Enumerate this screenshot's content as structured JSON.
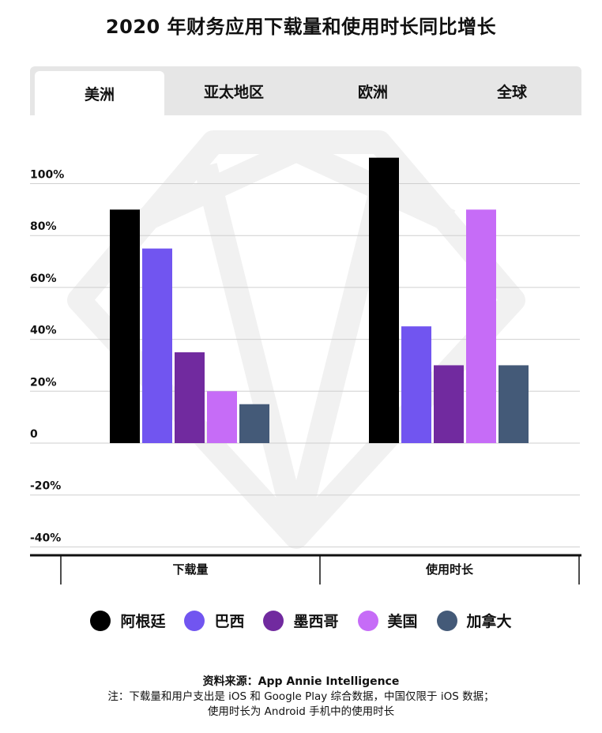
{
  "title": "2020 年财务应用下载量和使用时长同比增长",
  "tabs": [
    {
      "label": "美洲",
      "active": true
    },
    {
      "label": "亚太地区",
      "active": false
    },
    {
      "label": "欧洲",
      "active": false
    },
    {
      "label": "全球",
      "active": false
    }
  ],
  "chart_data": {
    "type": "bar",
    "categories": [
      "下载量",
      "使用时长"
    ],
    "series": [
      {
        "name": "阿根廷",
        "color": "#000000",
        "values": [
          90,
          110
        ]
      },
      {
        "name": "巴西",
        "color": "#7155f0",
        "values": [
          75,
          45
        ]
      },
      {
        "name": "墨西哥",
        "color": "#712a9f",
        "values": [
          35,
          30
        ]
      },
      {
        "name": "美国",
        "color": "#c66cf7",
        "values": [
          20,
          90
        ]
      },
      {
        "name": "加拿大",
        "color": "#445a78",
        "values": [
          15,
          30
        ]
      }
    ],
    "ylim": [
      -40,
      120
    ],
    "yticks": [
      100,
      80,
      60,
      40,
      20,
      0,
      -20,
      -40
    ],
    "ytick_labels": [
      "100%",
      "80%",
      "60%",
      "40%",
      "20%",
      "0",
      "-20%",
      "-40%"
    ],
    "grid": true,
    "legend": "bottom"
  },
  "footer": {
    "source": "资料来源：App Annie Intelligence",
    "note_line1": "注：下载量和用户支出是 iOS 和 Google Play 综合数据，中国仅限于 iOS 数据；",
    "note_line2": "使用时长为 Android 手机中的使用时长"
  }
}
